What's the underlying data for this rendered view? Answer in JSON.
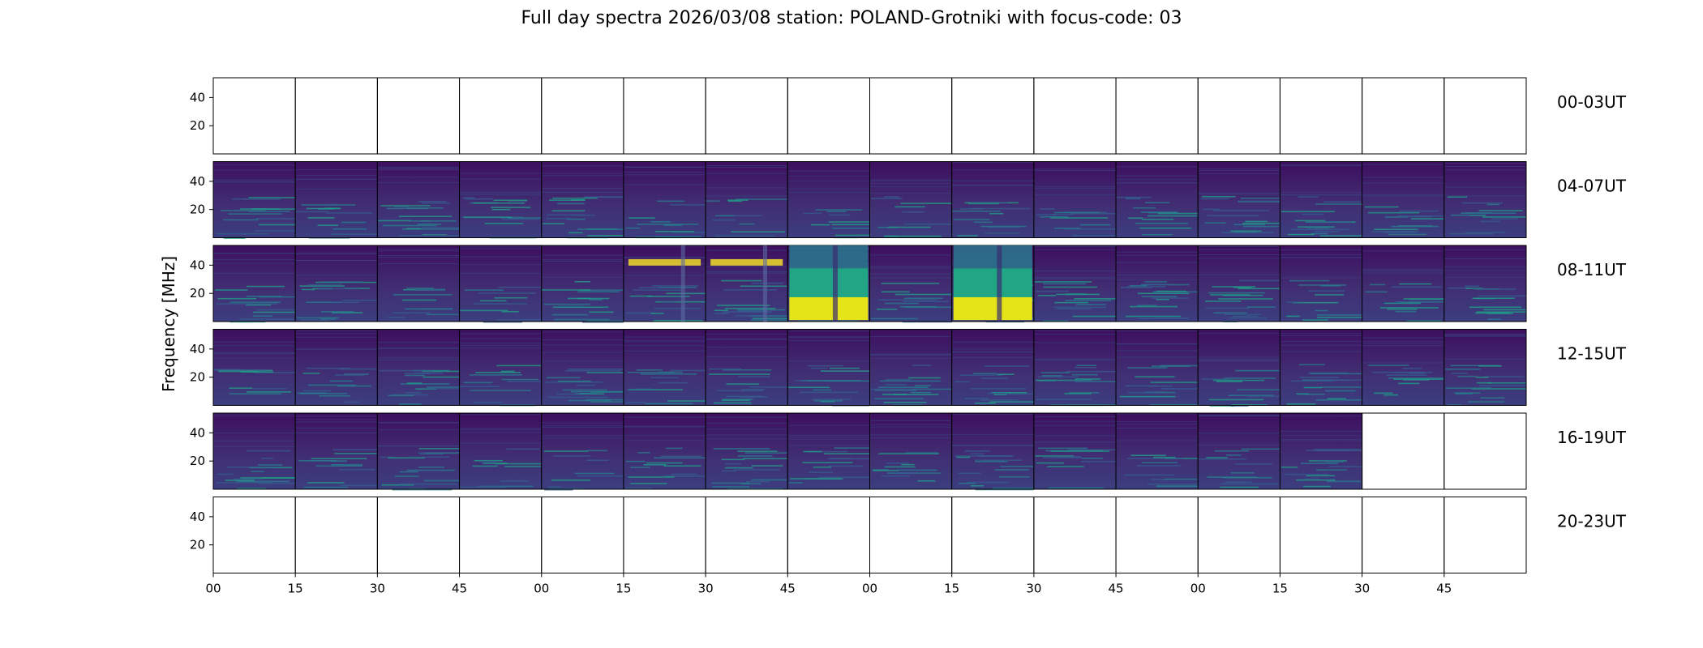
{
  "title": "Full day spectra 2026/03/08 station: POLAND-Grotniki with focus-code: 03",
  "chart_data": {
    "type": "heatmap",
    "title": "Full day spectra 2026/03/08 station: POLAND-Grotniki with focus-code: 03",
    "ylabel": "Frequency [MHz]",
    "ylim": [
      0,
      54
    ],
    "yticks": [
      20,
      40
    ],
    "xticks": [
      "00",
      "15",
      "30",
      "45",
      "00",
      "15",
      "30",
      "45",
      "00",
      "15",
      "30",
      "45",
      "00",
      "15",
      "30",
      "45"
    ],
    "colormap": "viridis",
    "rows": [
      {
        "label": "00-03UT",
        "data_panels": 0
      },
      {
        "label": "04-07UT",
        "data_panels": 16
      },
      {
        "label": "08-11UT",
        "data_panels": 16
      },
      {
        "label": "12-15UT",
        "data_panels": 16
      },
      {
        "label": "16-19UT",
        "data_panels": 14
      },
      {
        "label": "20-23UT",
        "data_panels": 0
      }
    ],
    "bursts": [
      {
        "row": "08-11UT",
        "panels": [
          7,
          9
        ],
        "level": "high"
      },
      {
        "row": "08-11UT",
        "panels": [
          5,
          6
        ],
        "level": "medium"
      }
    ]
  }
}
